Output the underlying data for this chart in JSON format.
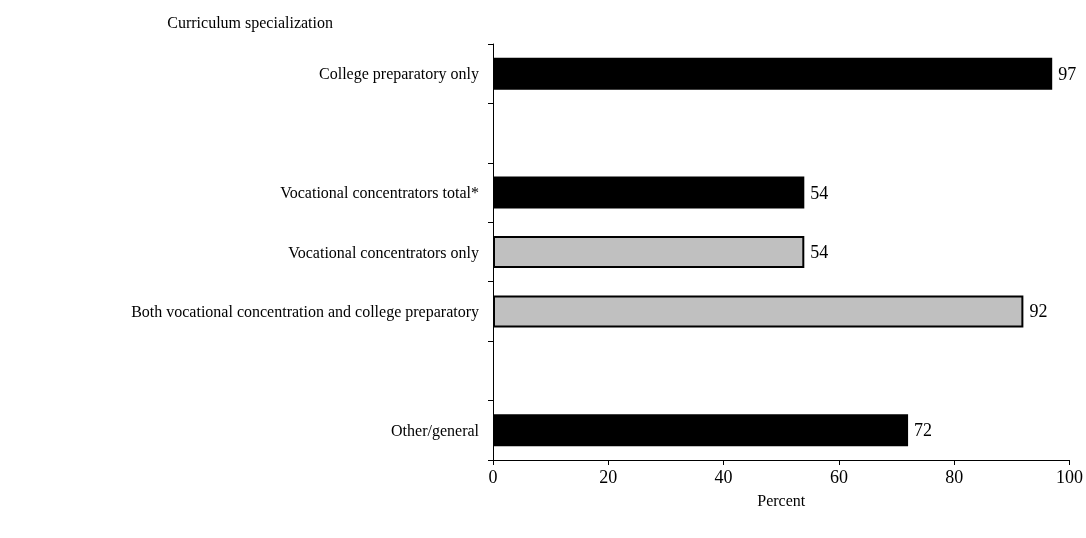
{
  "chart_data": {
    "type": "bar",
    "orientation": "horizontal",
    "ylabel": "Curriculum specialization",
    "xlabel": "Percent",
    "categories": [
      "College preparatory only",
      null,
      "Vocational concentrators total*",
      "Vocational concentrators only",
      "Both vocational concentration and college preparatory",
      null,
      "Other/general"
    ],
    "values": [
      97,
      null,
      54,
      54,
      92,
      null,
      72
    ],
    "colors": [
      "#000000",
      "#000000",
      "#000000",
      "#c0c0c0",
      "#c0c0c0",
      "#000000",
      "#000000"
    ],
    "xlim": [
      0,
      100
    ],
    "xticks": [
      0,
      20,
      40,
      60,
      80,
      100
    ],
    "data_labels": true,
    "grid": false
  }
}
